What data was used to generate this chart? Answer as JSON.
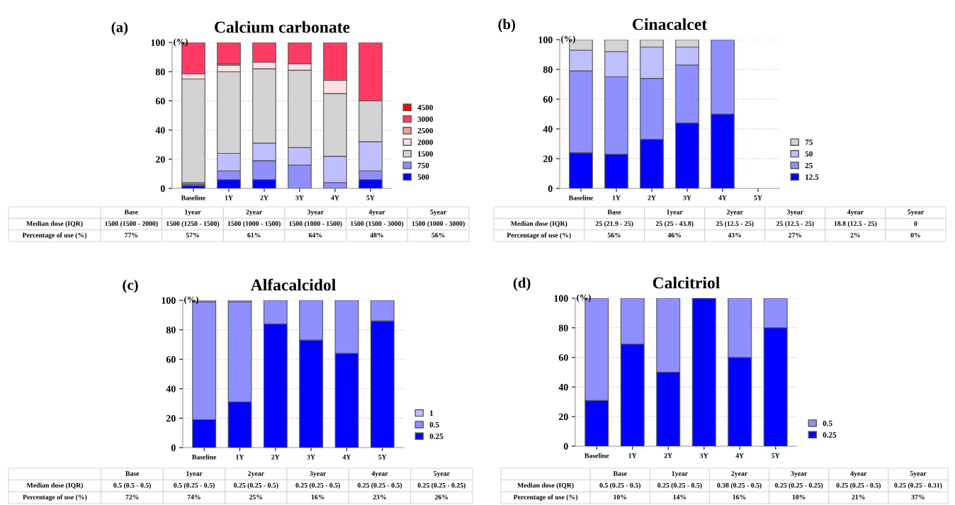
{
  "chart_data": [
    {
      "type": "bar",
      "title": "Calcium carbonate",
      "ylabel": "(%)",
      "categories": [
        "Baseline",
        "1Y",
        "2Y",
        "3Y",
        "4Y",
        "5Y"
      ],
      "stacked": true,
      "ylim": [
        0,
        100
      ],
      "yticks": [
        0,
        20,
        40,
        60,
        80,
        100
      ],
      "grid": "y",
      "legend": "bottom right",
      "annotations": [
        "(a)",
        "Base",
        "1year",
        "2year",
        "3year",
        "4year",
        "5year",
        "Median dose (IQR)",
        "1500 (1500 - 2000)",
        "1500 (1250 - 1500)",
        "1500 (1000 - 1500)",
        "1500 (1000 - 1500)",
        "1500 (1500 - 3000)",
        "1500 (1000 - 3000)",
        "Percentage of use (%)",
        "77%",
        "57%",
        "61%",
        "64%",
        "48%",
        "56%"
      ],
      "series": [
        {
          "name": "500",
          "color": "#0000ff",
          "values": [
            2,
            6,
            6,
            0,
            0,
            6
          ]
        },
        {
          "name": "750",
          "color": "#8f8fff",
          "values": [
            1,
            6,
            13,
            16,
            4,
            6
          ]
        },
        {
          "color": "#bfbfff",
          "values": [
            1,
            12,
            12,
            12,
            18,
            20
          ]
        },
        {
          "name": "1500",
          "color": "#d3d3d3",
          "values": [
            71,
            56,
            51,
            53,
            43,
            28
          ]
        },
        {
          "name": "2000",
          "color": "#ffe0e4",
          "values": [
            3.5,
            4.5,
            4.5,
            4.5,
            9,
            0
          ]
        },
        {
          "name": "2500",
          "color": "#f5a0a0",
          "values": [
            null,
            1,
            0,
            0,
            0,
            0
          ]
        },
        {
          "name": "3000",
          "color": "#ff3b64",
          "values": [
            21.5,
            14.5,
            13.5,
            14.5,
            26,
            40
          ]
        },
        {
          "name": "4500",
          "color": "#ff0000",
          "values": [
            0,
            0,
            0,
            0,
            0,
            0
          ]
        }
      ]
    },
    {
      "type": "bar",
      "title": "Cinacalcet",
      "ylabel": "(%)",
      "categories": [
        "Baseline",
        "1Y",
        "2Y",
        "3Y",
        "4Y",
        "5Y"
      ],
      "stacked": true,
      "ylim": [
        0,
        100
      ],
      "yticks": [
        0,
        20,
        40,
        60,
        80,
        100
      ],
      "grid": "y",
      "legend": "bottom right",
      "annotations": [
        "(b)",
        "Base",
        "1year",
        "2year",
        "3year",
        "4year",
        "5year",
        "Median dose (IQR)",
        "25 (21.9 - 25)",
        "25 (25 - 43.8)",
        "25 (12.5 - 25)",
        "25 (12.5 - 25)",
        "18.8 (12.5 - 25)",
        "0",
        "Percentage of use (%)",
        "56%",
        "46%",
        "43%",
        "27%",
        "2%",
        "0%"
      ],
      "series": [
        {
          "name": "12.5",
          "color": "#0000ff",
          "values": [
            24,
            23,
            33,
            44,
            50,
            0
          ]
        },
        {
          "name": "25",
          "color": "#8f8fff",
          "values": [
            55,
            52,
            41,
            39,
            50,
            0
          ]
        },
        {
          "name": "50",
          "color": "#bfbfff",
          "values": [
            14,
            17,
            21,
            12,
            0,
            0
          ]
        },
        {
          "name": "75",
          "color": "#d3d3d3",
          "values": [
            7,
            8,
            5,
            5,
            0,
            0
          ]
        }
      ]
    },
    {
      "type": "bar",
      "title": "Alfacalcidol",
      "ylabel": "(%)",
      "categories": [
        "Baseline",
        "1Y",
        "2Y",
        "3Y",
        "4Y",
        "5Y"
      ],
      "stacked": true,
      "ylim": [
        0,
        100
      ],
      "yticks": [
        0,
        20,
        40,
        60,
        80,
        100
      ],
      "grid": "y",
      "legend": "bottom right",
      "annotations": [
        "(c)",
        "Base",
        "1year",
        "2year",
        "3year",
        "4year",
        "5year",
        "Median dose (IQR)",
        "0.5 (0.5 - 0.5)",
        "0.5 (0.25 - 0.5)",
        "0.25 (0.25 - 0.5)",
        "0.25 (0.25 - 0.5)",
        "0.25 (0.25 - 0.5)",
        "0.25 (0.25 - 0.25)",
        "Percentage of use (%)",
        "72%",
        "74%",
        "25%",
        "16%",
        "23%",
        "26%"
      ],
      "series": [
        {
          "name": "0.25",
          "color": "#0000ff",
          "values": [
            19,
            31,
            84,
            73,
            64,
            86
          ]
        },
        {
          "name": "0.5",
          "color": "#8f8fff",
          "values": [
            80,
            68,
            16,
            27,
            36,
            14
          ]
        },
        {
          "name": "1",
          "color": "#bfbfff",
          "values": [
            1,
            1,
            0,
            0,
            0,
            0
          ]
        }
      ]
    },
    {
      "type": "bar",
      "title": "Calcitriol",
      "ylabel": "(%)",
      "categories": [
        "Baseline",
        "1Y",
        "2Y",
        "3Y",
        "4Y",
        "5Y"
      ],
      "stacked": true,
      "ylim": [
        0,
        100
      ],
      "yticks": [
        0,
        20,
        40,
        60,
        80,
        100
      ],
      "grid": "y",
      "legend": "bottom right",
      "annotations": [
        "(d)",
        "Base",
        "1year",
        "2year",
        "3year",
        "4year",
        "5year",
        "Median dose (IQR)",
        "0.5 (0.25 - 0.5)",
        "0.25 (0.25 - 0.5)",
        "0.38 (0.25 - 0.5)",
        "0.25 (0.25 - 0.25)",
        "0.25 (0.25 - 0.5)",
        "0.25 (0.25 - 0.31)",
        "Percentage of use (%)",
        "10%",
        "14%",
        "16%",
        "10%",
        "21%",
        "37%"
      ],
      "series": [
        {
          "name": "0.25",
          "color": "#0000ff",
          "values": [
            31,
            69,
            50,
            100,
            60,
            80
          ]
        },
        {
          "name": "0.5",
          "color": "#8f8fff",
          "values": [
            69,
            31,
            50,
            0,
            40,
            20
          ]
        }
      ]
    }
  ]
}
